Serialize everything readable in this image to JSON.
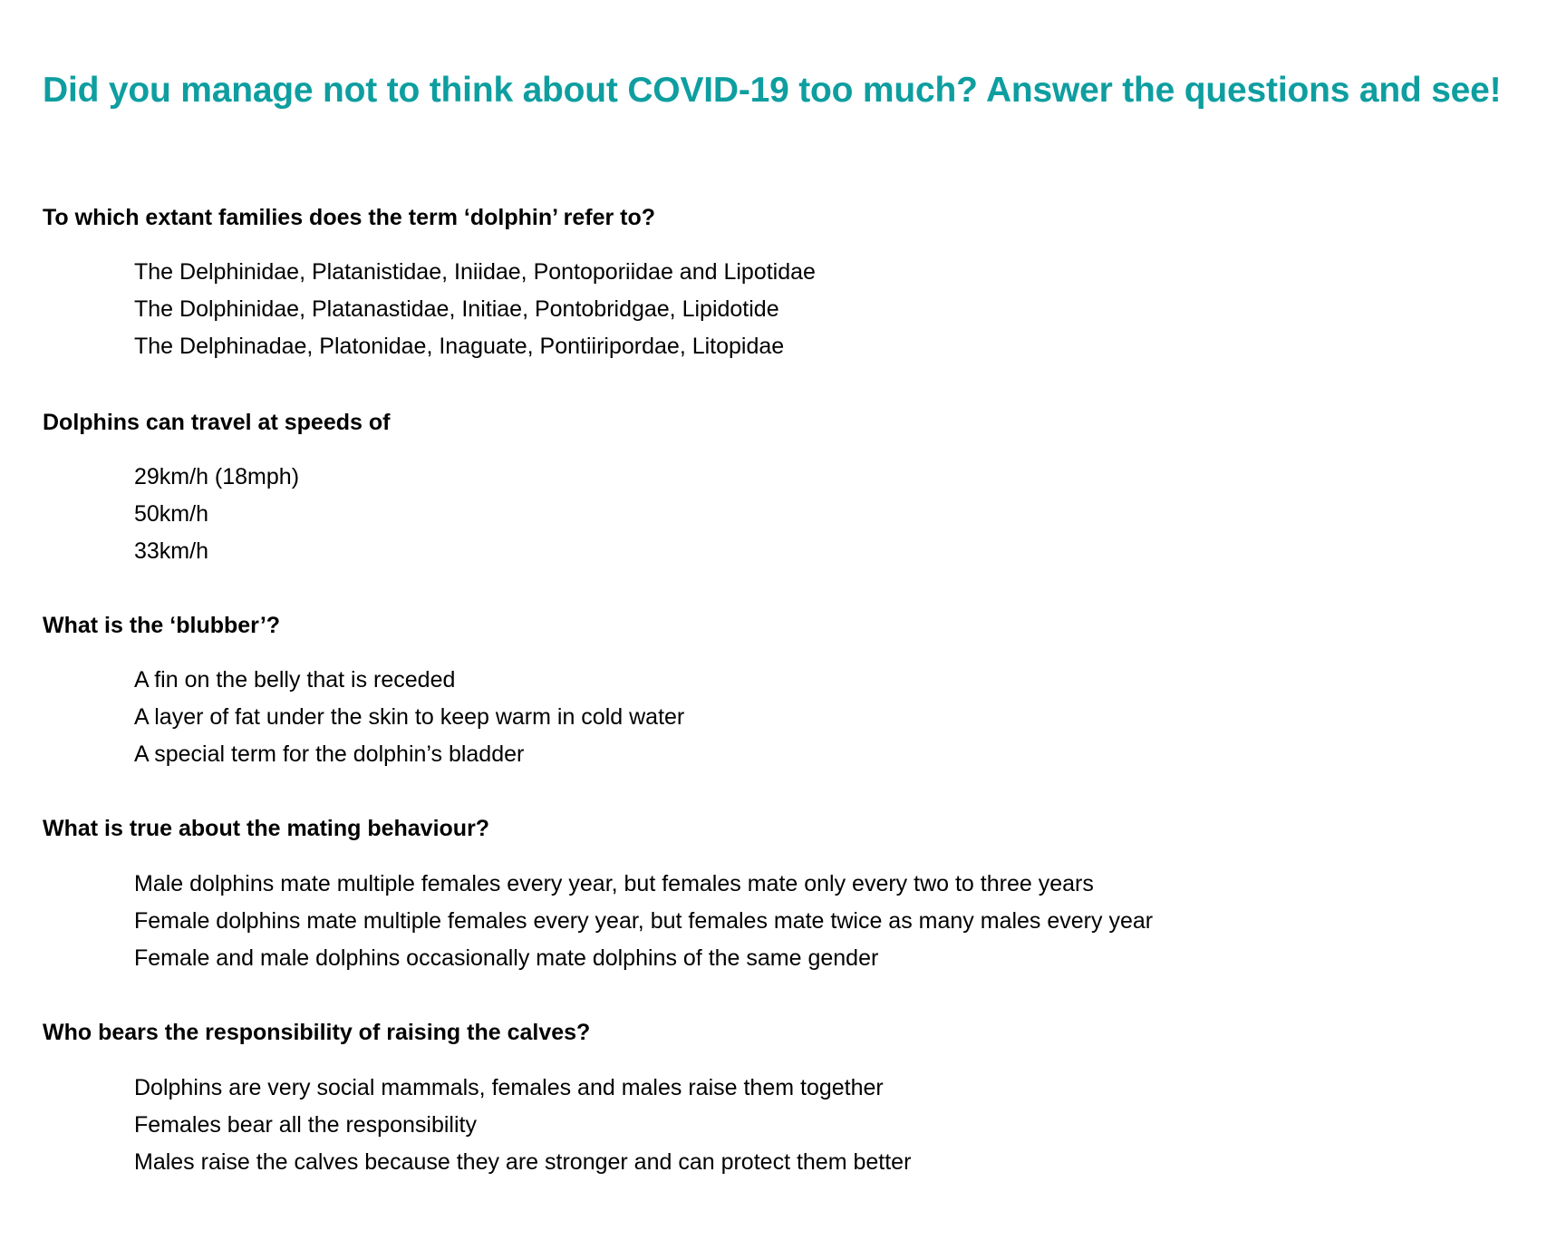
{
  "title": "Did you manage not to think about COVID-19 too much? Answer the questions and see!",
  "questions": [
    {
      "text": "To which extant families does the term ‘dolphin’ refer to?",
      "options": [
        "The Delphinidae, Platanistidae, Iniidae, Pontoporiidae and Lipotidae",
        "The Dolphinidae, Platanastidae, Initiae, Pontobridgae, Lipidotide",
        "The Delphinadae, Platonidae, Inaguate, Pontiiripordae, Litopidae"
      ]
    },
    {
      "text": "Dolphins can travel at speeds of",
      "options": [
        "29km/h (18mph)",
        "50km/h",
        "33km/h"
      ]
    },
    {
      "text": "What is the ‘blubber’?",
      "options": [
        "A fin on the belly that is receded",
        "A layer of fat under the skin to keep warm in cold water",
        "A special term for the dolphin’s bladder"
      ]
    },
    {
      "text": "What is true about the mating behaviour?",
      "options": [
        "Male dolphins mate multiple females every year, but females mate only every two to three years",
        "Female dolphins mate multiple females every year, but females mate twice as many males every year",
        "Female and male dolphins occasionally mate dolphins of the same gender"
      ]
    },
    {
      "text": "Who bears the responsibility of raising the calves?",
      "options": [
        "Dolphins are very social mammals, females and males raise them together",
        "Females bear all the responsibility",
        "Males raise the calves because they are stronger and can protect them better"
      ]
    }
  ]
}
